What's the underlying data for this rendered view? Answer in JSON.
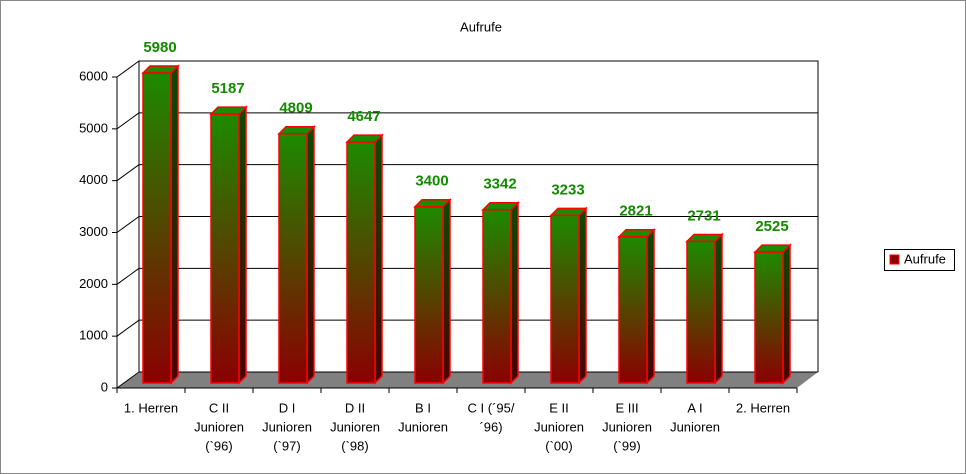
{
  "chart_data": {
    "type": "bar3d",
    "title": "Aufrufe",
    "categories": [
      [
        "1. Herren"
      ],
      [
        "C II",
        "Junioren",
        "(`96)"
      ],
      [
        "D I",
        "Junioren",
        "(`97)"
      ],
      [
        "D II",
        "Junioren",
        "(`98)"
      ],
      [
        "B I",
        "Junioren"
      ],
      [
        "C I (´95/",
        "´96)"
      ],
      [
        "E II",
        "Junioren",
        "(`00)"
      ],
      [
        "E III",
        "Junioren",
        "(`99)"
      ],
      [
        "A I",
        "Junioren"
      ],
      [
        "2. Herren"
      ]
    ],
    "series": [
      {
        "name": "Aufrufe",
        "color": "#8b0000",
        "values": [
          5980,
          5187,
          4809,
          4647,
          3400,
          3342,
          3233,
          2821,
          2731,
          2525
        ]
      }
    ],
    "ylim": [
      0,
      6000
    ],
    "yticks": [
      0,
      1000,
      2000,
      3000,
      4000,
      5000,
      6000
    ],
    "grid": true,
    "legend": "right"
  }
}
